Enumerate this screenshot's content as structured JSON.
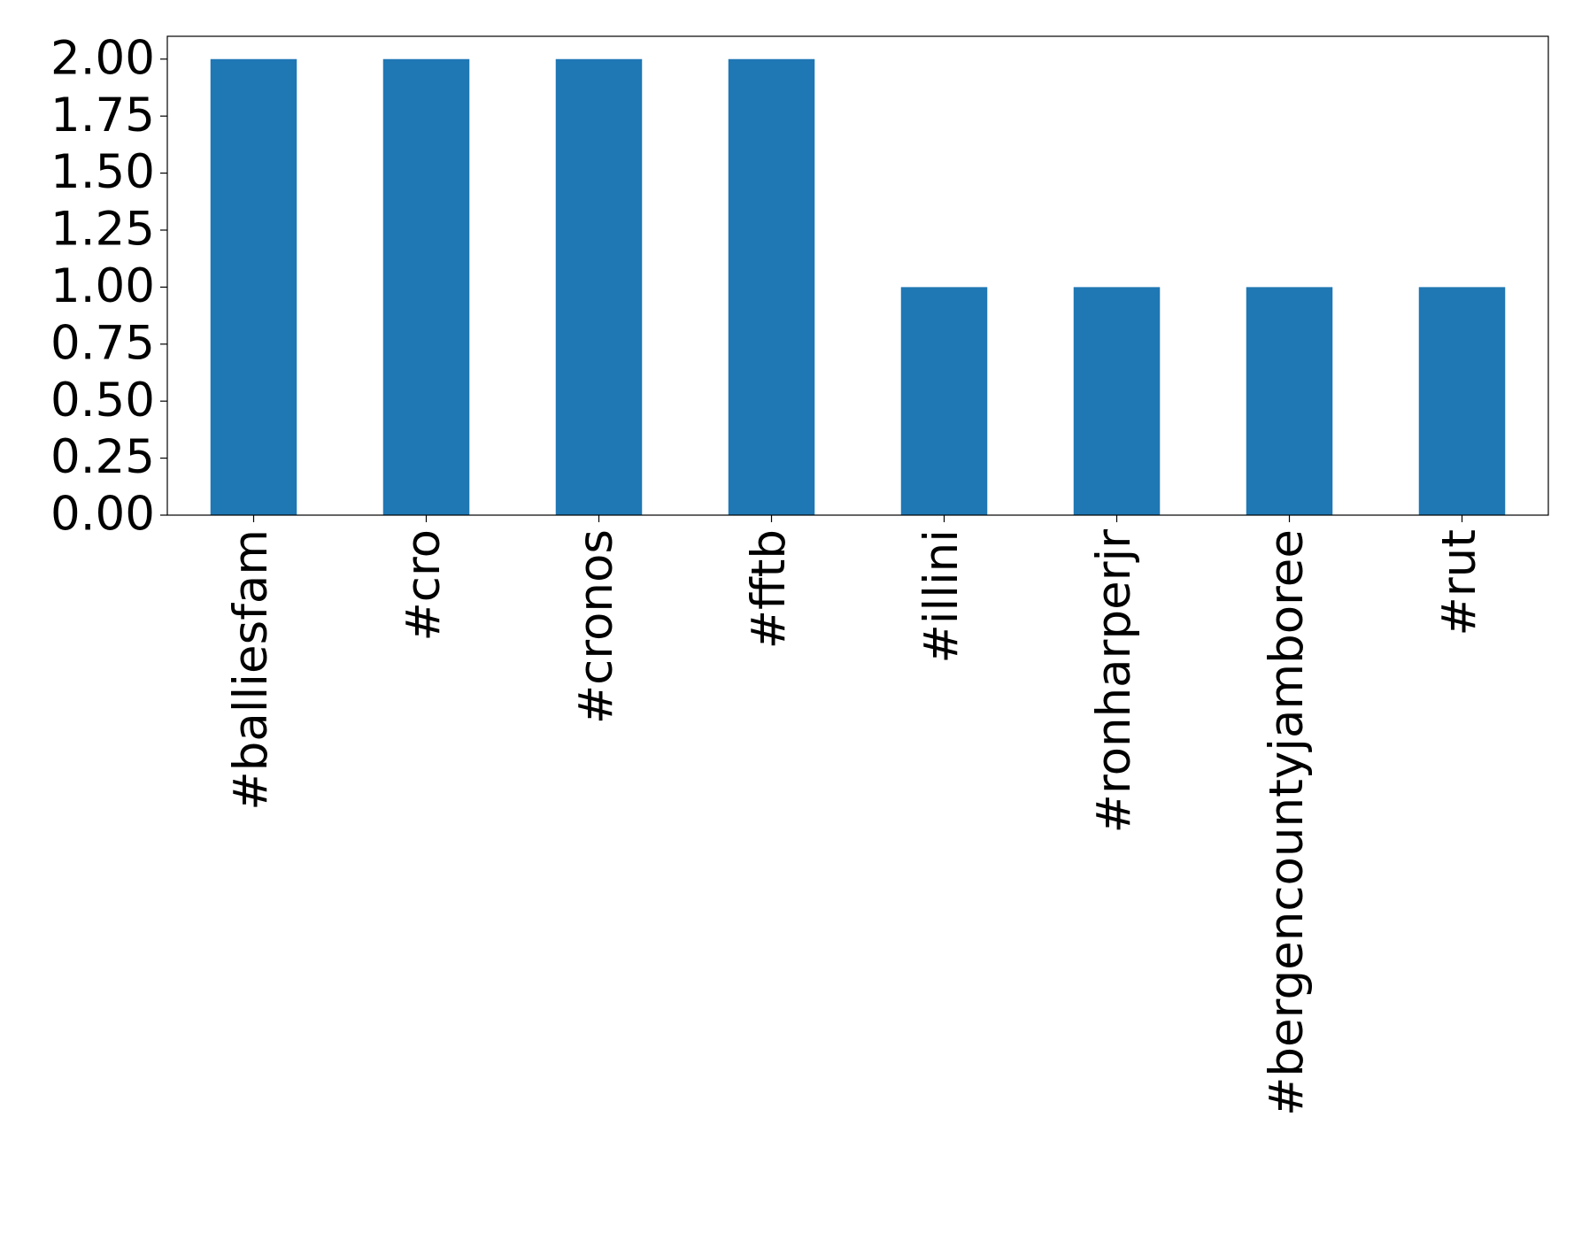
{
  "chart_data": {
    "type": "bar",
    "categories": [
      "#balliesfam",
      "#cro",
      "#cronos",
      "#fftb",
      "#illini",
      "#ronharperjr",
      "#bergencountyjamboree",
      "#rut"
    ],
    "values": [
      2,
      2,
      2,
      2,
      1,
      1,
      1,
      1
    ],
    "color": "#1f77b4",
    "ylim": [
      0,
      2.1
    ],
    "yticks": [
      {
        "value": 0,
        "label": "0.00"
      },
      {
        "value": 0.25,
        "label": "0.25"
      },
      {
        "value": 0.5,
        "label": "0.50"
      },
      {
        "value": 0.75,
        "label": "0.75"
      },
      {
        "value": 1,
        "label": "1.00"
      },
      {
        "value": 1.25,
        "label": "1.25"
      },
      {
        "value": 1.5,
        "label": "1.50"
      },
      {
        "value": 1.75,
        "label": "1.75"
      },
      {
        "value": 2,
        "label": "2.00"
      }
    ],
    "grid": false
  }
}
